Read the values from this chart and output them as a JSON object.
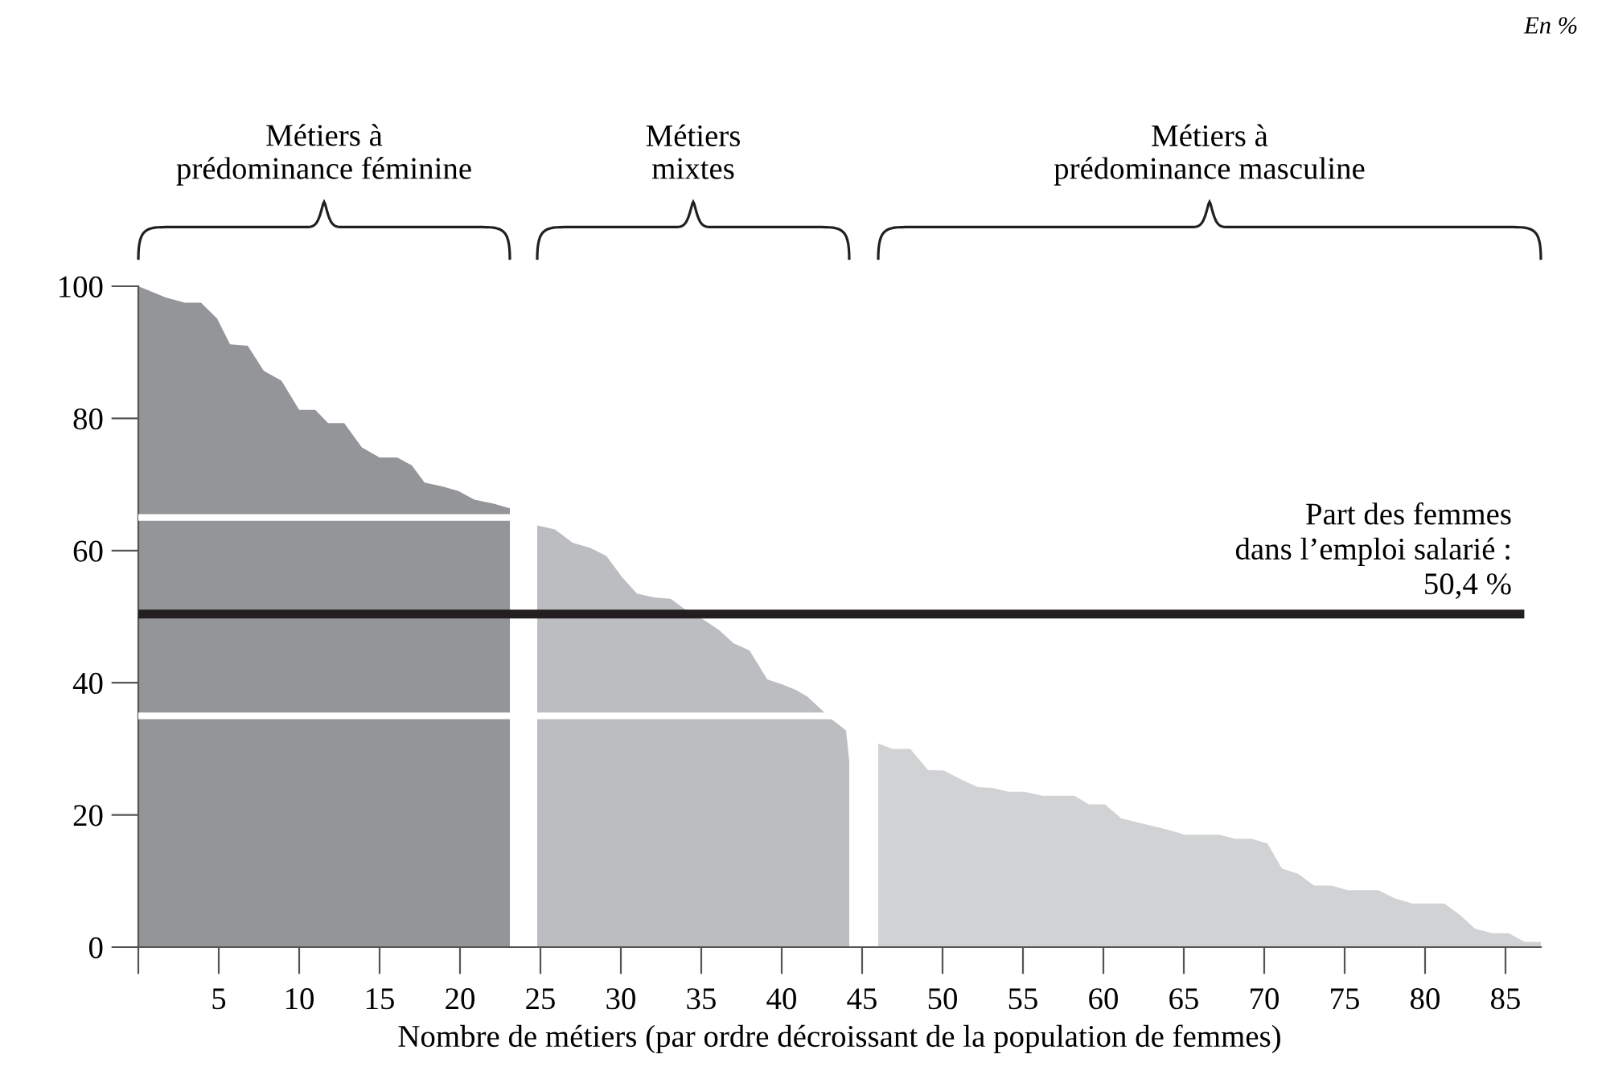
{
  "chart_data": {
    "type": "area",
    "xlabel": "Nombre de métiers (par ordre décroissant de la population de femmes)",
    "annotations": [
      "Métiers à\nprédominance féminine",
      "Métiers\nmixtes",
      "Métiers à\nprédominance masculine",
      "En %"
    ],
    "xlim": [
      0,
      87.2
    ],
    "ylim": [
      0,
      100
    ],
    "xticks": [
      {
        "value": 0,
        "label": null
      },
      5,
      10,
      15,
      20,
      25,
      30,
      35,
      40,
      45,
      50,
      55,
      60,
      65,
      70,
      75,
      80,
      85
    ],
    "yticks": [
      0,
      20,
      40,
      60,
      80,
      100
    ],
    "grid": false,
    "legend": false,
    "series": [
      {
        "color": "#939598",
        "x": [
          0,
          0.7,
          1.7,
          2.9,
          3.9,
          4.9,
          5.7,
          6.8,
          7.8,
          8.9,
          10,
          11,
          11.8,
          12.8,
          13.9,
          15,
          16.1,
          17,
          17.8,
          18.9,
          19.9,
          20.9,
          22.1,
          23.1
        ],
        "values": [
          100,
          99.3,
          98.3,
          97.5,
          97.5,
          95.1,
          91.2,
          91.0,
          87.2,
          85.7,
          81.3,
          81.3,
          79.3,
          79.3,
          75.6,
          74.1,
          74.1,
          72.9,
          70.3,
          69.7,
          69.0,
          67.7,
          67.1,
          66.4
        ]
      },
      {
        "color": "#bcbdc0",
        "x": [
          24.8,
          25.9,
          27,
          28.1,
          29.1,
          30.1,
          31,
          32.1,
          33.1,
          34.1,
          35.1,
          36.1,
          37,
          38,
          39.1,
          40.1,
          40.9,
          41.6,
          42.3,
          43.1,
          44,
          44.2
        ],
        "values": [
          63.8,
          63.2,
          61.2,
          60.4,
          59.2,
          55.9,
          53.5,
          52.9,
          52.7,
          50.9,
          49.6,
          48.0,
          46.0,
          44.9,
          40.5,
          39.7,
          38.9,
          37.9,
          36.3,
          34.5,
          32.8,
          28.2
        ]
      },
      {
        "color": "#d1d2d4",
        "x": [
          46.0,
          46.9,
          48,
          49.1,
          50.1,
          51.2,
          52.2,
          53.1,
          54.1,
          55.1,
          56.2,
          58.2,
          59.1,
          60.1,
          61.1,
          62.1,
          63.1,
          64.1,
          65.1,
          66.1,
          67.2,
          68.2,
          69.2,
          70.2,
          71.1,
          72.1,
          73.1,
          74.2,
          75.2,
          77.1,
          78.1,
          79.2,
          81.2,
          82.2,
          83.1,
          84.2,
          85.2,
          86.2,
          87.2
        ],
        "values": [
          30.8,
          30.0,
          30.0,
          26.8,
          26.7,
          25.3,
          24.2,
          24.1,
          23.5,
          23.5,
          22.9,
          22.9,
          21.6,
          21.6,
          19.5,
          18.9,
          18.3,
          17.7,
          17.0,
          17.0,
          17.0,
          16.4,
          16.4,
          15.7,
          11.9,
          11.1,
          9.3,
          9.3,
          8.6,
          8.6,
          7.4,
          6.6,
          6.6,
          4.8,
          2.8,
          2.1,
          2.1,
          0.8,
          0.8
        ]
      }
    ],
    "ref_lines": [
      {
        "axis": "y",
        "value": 65,
        "label": null,
        "color": "#ffffff"
      },
      {
        "axis": "y",
        "value": 35,
        "label": null,
        "color": "#ffffff"
      },
      {
        "axis": "y",
        "value": 50.4,
        "label": "Part des femmes\ndans l’emploi salarié :\n50,4 %",
        "color": "#231f20"
      }
    ]
  }
}
